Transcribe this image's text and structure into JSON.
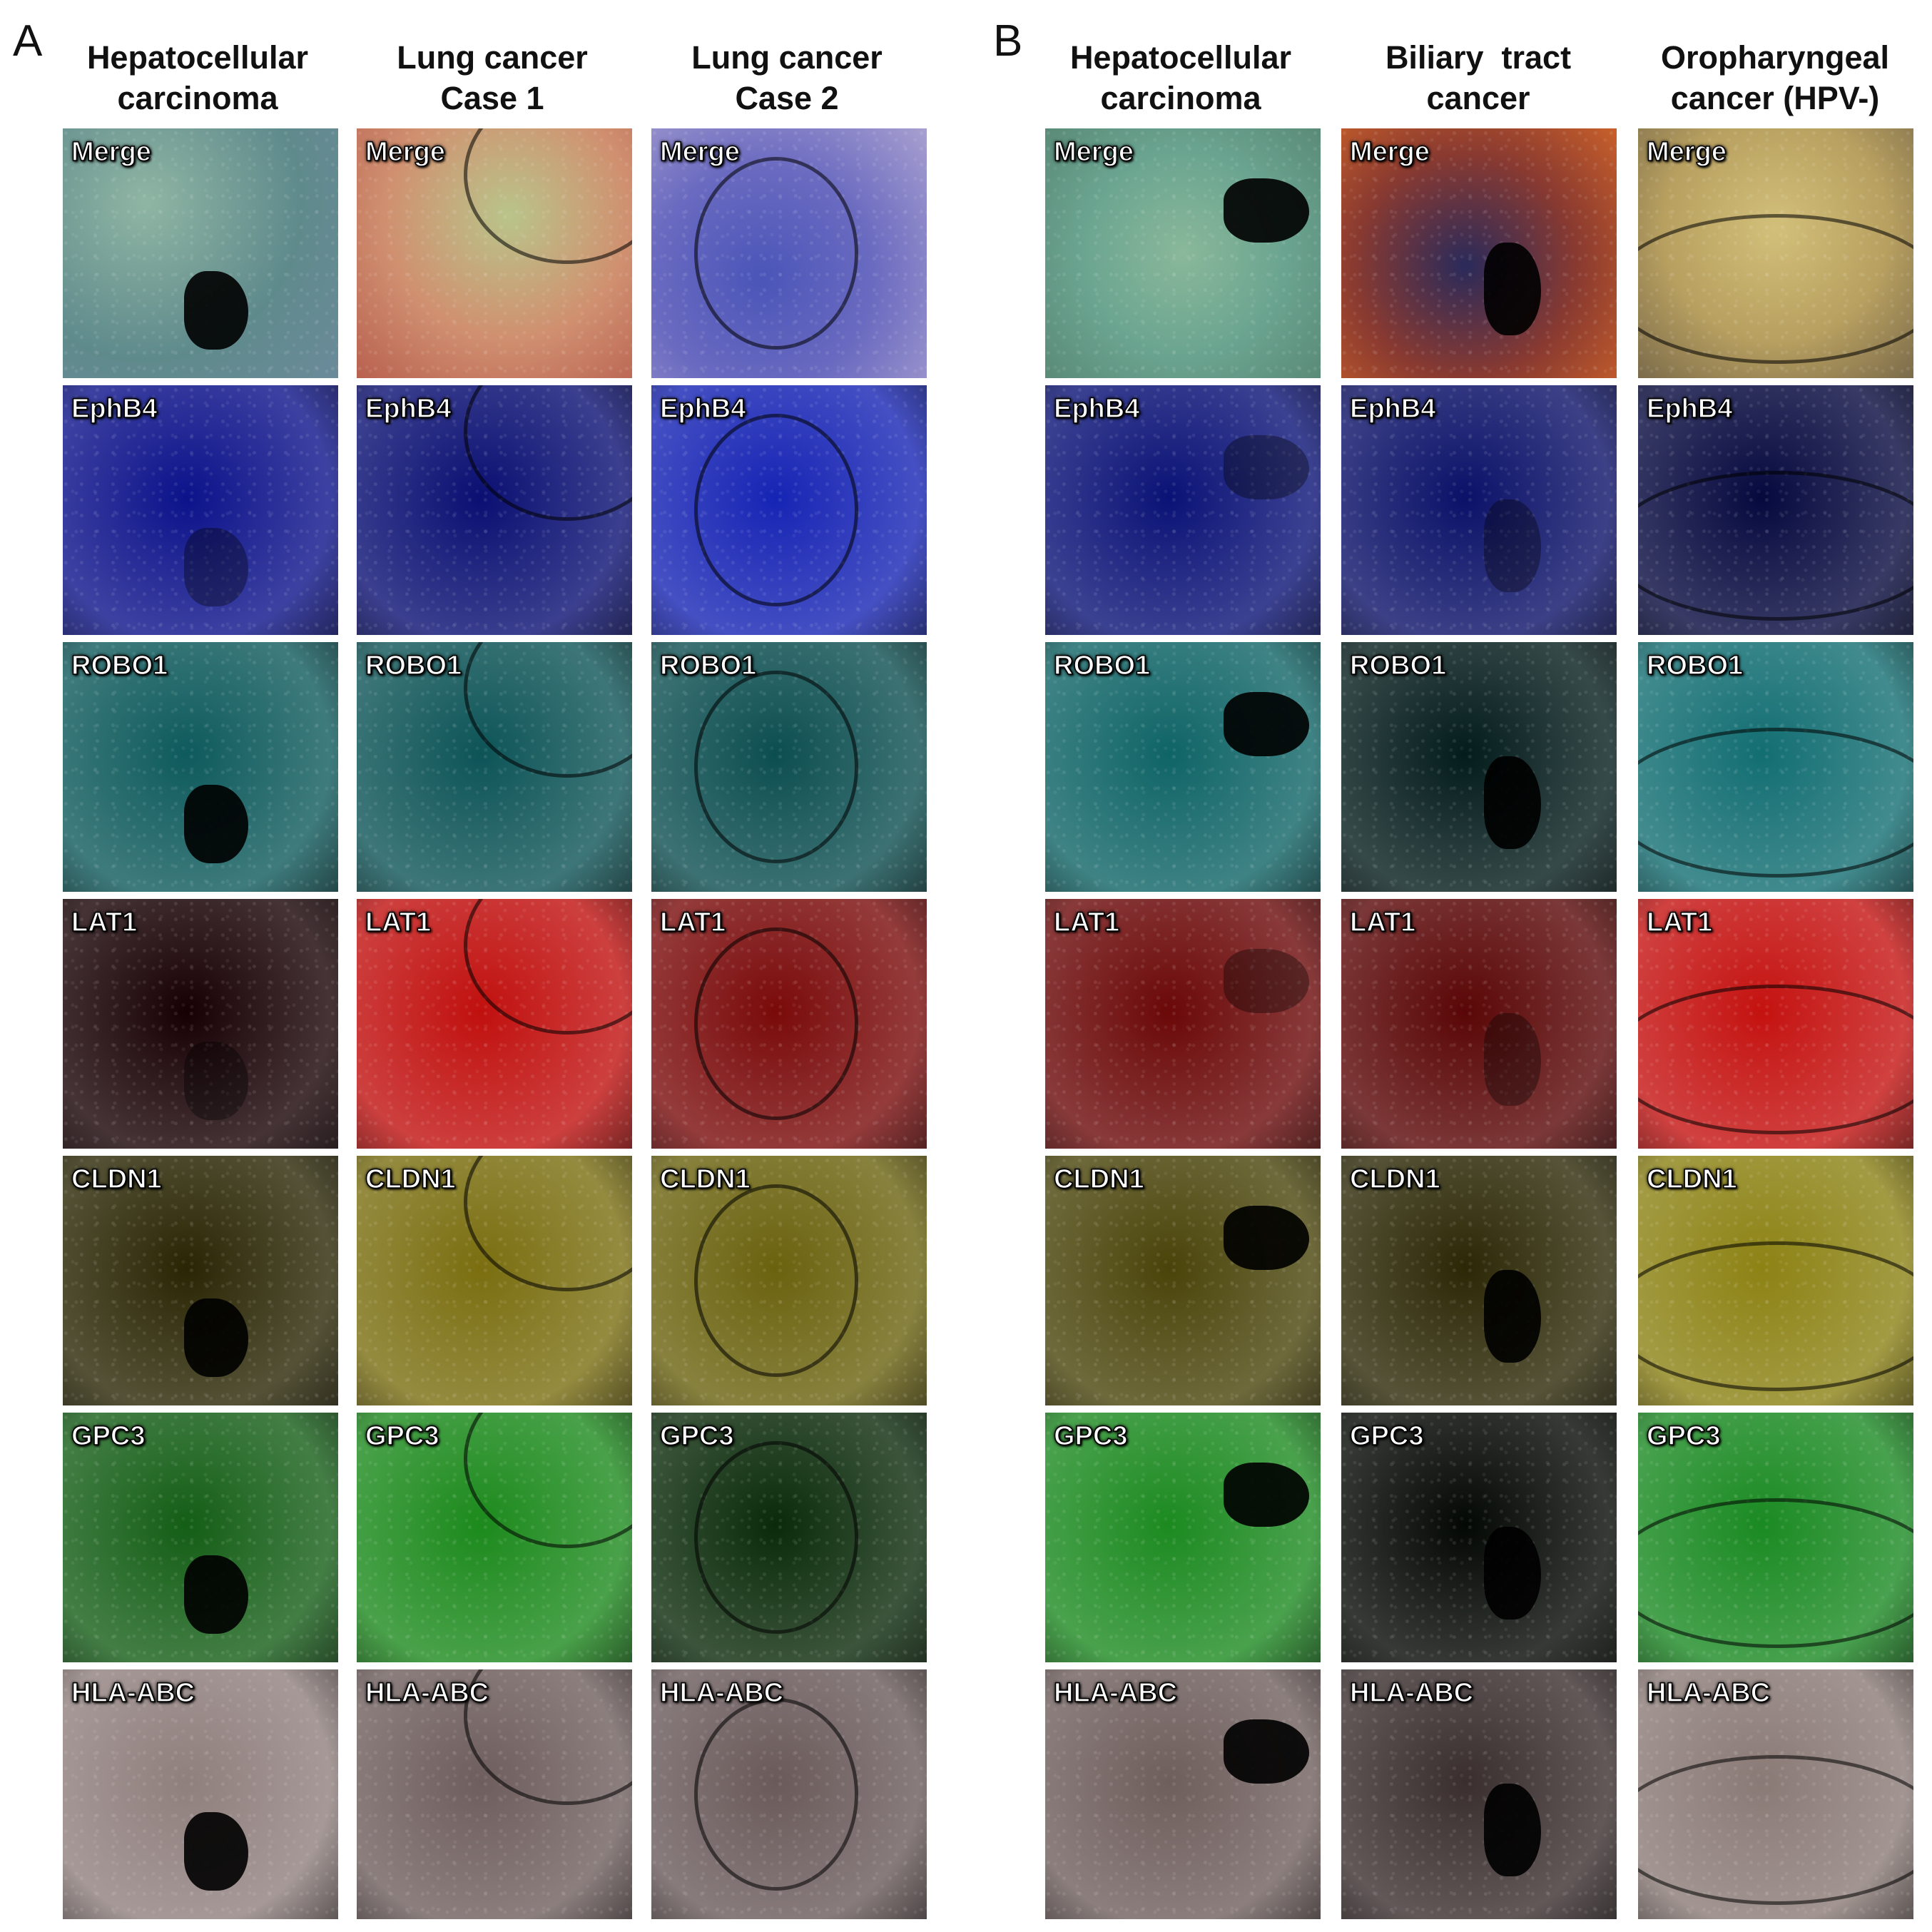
{
  "panels": [
    {
      "letter": "A",
      "columns": [
        {
          "line1": "Hepatocellular",
          "line2": "carcinoma"
        },
        {
          "line1": "Lung cancer",
          "line2": "Case 1"
        },
        {
          "line1": "Lung cancer",
          "line2": "Case 2"
        }
      ]
    },
    {
      "letter": "B",
      "columns": [
        {
          "line1": "Hepatocellular",
          "line2": "carcinoma"
        },
        {
          "line1": "Biliary  tract",
          "line2": "cancer"
        },
        {
          "line1": "Oropharyngeal",
          "line2": "cancer (HPV-)"
        }
      ]
    }
  ],
  "rows": [
    {
      "label": "Merge"
    },
    {
      "label": "EphB4"
    },
    {
      "label": "ROBO1"
    },
    {
      "label": "LAT1"
    },
    {
      "label": "CLDN1"
    },
    {
      "label": "GPC3"
    },
    {
      "label": "HLA-ABC"
    }
  ],
  "tile_colors": [
    [
      "#6f9a92",
      "#c8a27a",
      "#5d67b6",
      "#6fa892",
      "#7a3a3a",
      "#b2a468"
    ],
    [
      "#0c128a",
      "#0a0f72",
      "#1624b4",
      "#0a1276",
      "#0b1168",
      "#06093e"
    ],
    [
      "#0e5a5c",
      "#0d5457",
      "#0c4e50",
      "#0f6466",
      "#041c1c",
      "#126e72"
    ],
    [
      "#170003",
      "#c0100e",
      "#7a0a0a",
      "#6b0808",
      "#5a0606",
      "#c41210"
    ],
    [
      "#2a2604",
      "#7a6e10",
      "#6a620e",
      "#4a440a",
      "#2c2806",
      "#8c8214"
    ],
    [
      "#145e16",
      "#1c8a1c",
      "#0a2a0a",
      "#1c8a20",
      "#040804",
      "#1a8a22"
    ],
    [
      "#8f7f7d",
      "#6e5e5d",
      "#6a5a5a",
      "#6e5e5c",
      "#3a2e2e",
      "#8a7a76"
    ]
  ]
}
